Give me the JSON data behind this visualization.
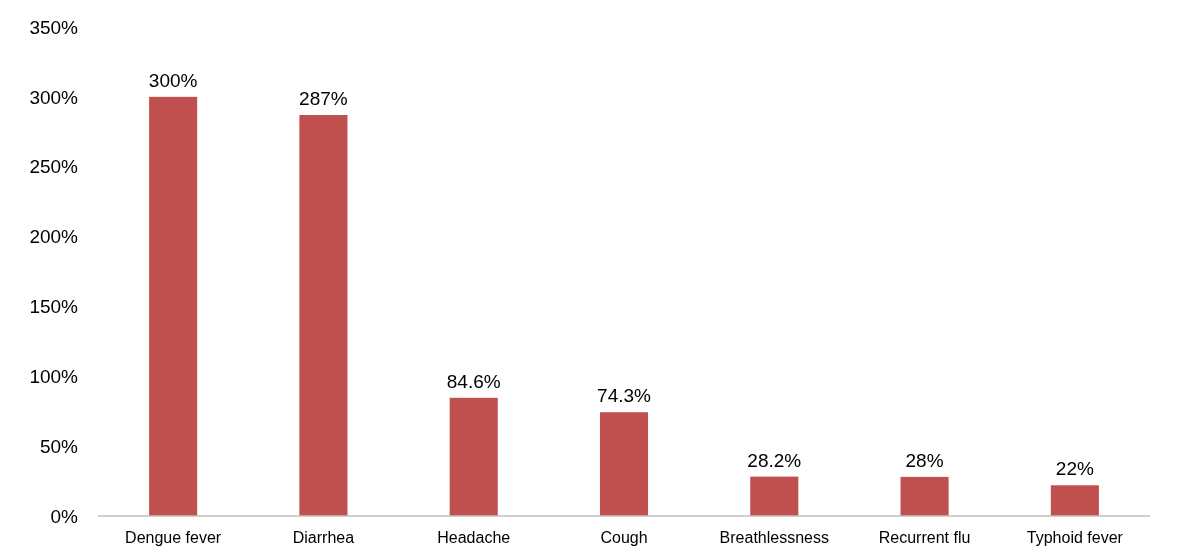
{
  "chart_data": {
    "type": "bar",
    "categories": [
      "Dengue fever",
      "Diarrhea",
      "Headache",
      "Cough",
      "Breathlessness",
      "Recurrent flu",
      "Typhoid fever"
    ],
    "values": [
      300,
      287,
      84.6,
      74.3,
      28.2,
      28,
      22
    ],
    "value_labels": [
      "300%",
      "287%",
      "84.6%",
      "74.3%",
      "28.2%",
      "28%",
      "22%"
    ],
    "color": "#c0504d",
    "ylim": [
      0,
      350
    ],
    "yticks": [
      {
        "value": 0,
        "label": "0%"
      },
      {
        "value": 50,
        "label": "50%"
      },
      {
        "value": 100,
        "label": "100%"
      },
      {
        "value": 150,
        "label": "150%"
      },
      {
        "value": 200,
        "label": "200%"
      },
      {
        "value": 250,
        "label": "250%"
      },
      {
        "value": 300,
        "label": "300%"
      },
      {
        "value": 350,
        "label": "350%"
      }
    ],
    "grid": false
  }
}
